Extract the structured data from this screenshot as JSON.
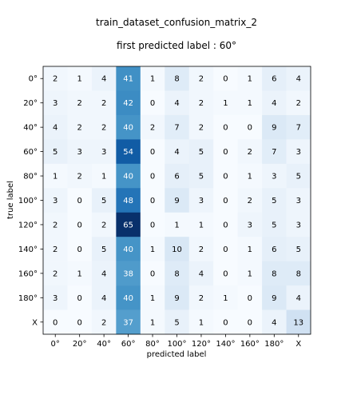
{
  "chart_data": {
    "type": "heatmap",
    "title": "train_dataset_confusion_matrix_2",
    "subtitle": "first predicted label : 60°",
    "xlabel": "predicted label",
    "ylabel": "true label",
    "x_categories": [
      "0°",
      "20°",
      "40°",
      "60°",
      "80°",
      "100°",
      "120°",
      "140°",
      "160°",
      "180°",
      "X"
    ],
    "y_categories": [
      "0°",
      "20°",
      "40°",
      "60°",
      "80°",
      "100°",
      "120°",
      "140°",
      "160°",
      "180°",
      "X"
    ],
    "values": [
      [
        2,
        1,
        4,
        41,
        1,
        8,
        2,
        0,
        1,
        6,
        4
      ],
      [
        3,
        2,
        2,
        42,
        0,
        4,
        2,
        1,
        1,
        4,
        2
      ],
      [
        4,
        2,
        2,
        40,
        2,
        7,
        2,
        0,
        0,
        9,
        7
      ],
      [
        5,
        3,
        3,
        54,
        0,
        4,
        5,
        0,
        2,
        7,
        3
      ],
      [
        1,
        2,
        1,
        40,
        0,
        6,
        5,
        0,
        1,
        3,
        5
      ],
      [
        3,
        0,
        5,
        48,
        0,
        9,
        3,
        0,
        2,
        5,
        3
      ],
      [
        2,
        0,
        2,
        65,
        0,
        1,
        1,
        0,
        3,
        5,
        3
      ],
      [
        2,
        0,
        5,
        40,
        1,
        10,
        2,
        0,
        1,
        6,
        5
      ],
      [
        2,
        1,
        4,
        38,
        0,
        8,
        4,
        0,
        1,
        8,
        8
      ],
      [
        3,
        0,
        4,
        40,
        1,
        9,
        2,
        1,
        0,
        9,
        4
      ],
      [
        0,
        0,
        2,
        37,
        1,
        5,
        1,
        0,
        0,
        4,
        13
      ]
    ],
    "colormap": "Blues",
    "value_range": [
      0,
      65
    ]
  }
}
